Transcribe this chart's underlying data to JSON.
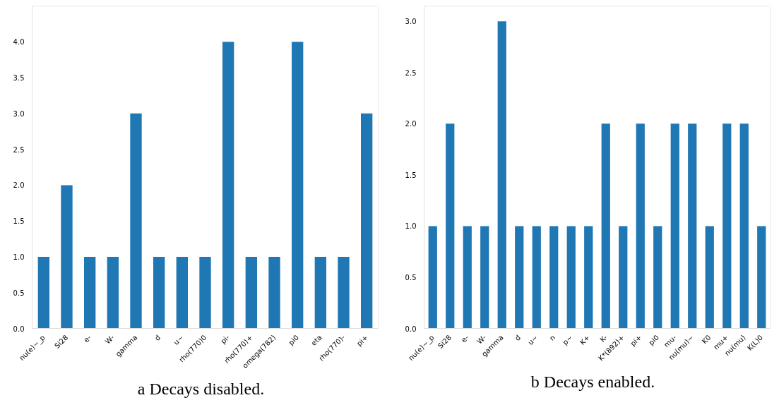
{
  "chart_data": [
    {
      "type": "bar",
      "title": "a   Decays disabled.",
      "categories": [
        "nu(e)~_p",
        "Si28",
        "e-",
        "W-",
        "gamma",
        "d",
        "u~",
        "rho(770)0",
        "pi-",
        "rho(770)+",
        "omega(782)",
        "pi0",
        "eta",
        "rho(770)-",
        "pi+"
      ],
      "values": [
        1,
        2,
        1,
        1,
        3,
        1,
        1,
        1,
        4,
        1,
        1,
        4,
        1,
        1,
        3
      ],
      "color": "#1f77b4",
      "ylim": [
        0,
        4.5
      ],
      "yticks": [
        {
          "value": 0,
          "label": "0.0"
        },
        {
          "value": 0.5,
          "label": "0.5"
        },
        {
          "value": 1,
          "label": "1.0"
        },
        {
          "value": 1.5,
          "label": "1.5"
        },
        {
          "value": 2,
          "label": "2.0"
        },
        {
          "value": 2.5,
          "label": "2.5"
        },
        {
          "value": 3,
          "label": "3.0"
        },
        {
          "value": 3.5,
          "label": "3.5"
        },
        {
          "value": 4,
          "label": "4.0"
        }
      ],
      "grid": false
    },
    {
      "type": "bar",
      "title": "b   Decays enabled.",
      "categories": [
        "nu(e)~_p",
        "Si28",
        "e-",
        "W-",
        "gamma",
        "d",
        "u~",
        "n",
        "p~",
        "K+",
        "K-",
        "K*(892)+",
        "pi+",
        "pi0",
        "mu-",
        "nu(mu)~",
        "K0",
        "mu+",
        "nu(mu)",
        "K(L)0"
      ],
      "values": [
        1,
        2,
        1,
        1,
        3,
        1,
        1,
        1,
        1,
        1,
        2,
        1,
        2,
        1,
        2,
        2,
        1,
        2,
        2,
        1
      ],
      "color": "#1f77b4",
      "ylim": [
        0,
        3.15
      ],
      "yticks": [
        {
          "value": 0,
          "label": "0.0"
        },
        {
          "value": 0.5,
          "label": "0.5"
        },
        {
          "value": 1,
          "label": "1.0"
        },
        {
          "value": 1.5,
          "label": "1.5"
        },
        {
          "value": 2,
          "label": "2.0"
        },
        {
          "value": 2.5,
          "label": "2.5"
        },
        {
          "value": 3,
          "label": "3.0"
        }
      ],
      "grid": false
    }
  ]
}
